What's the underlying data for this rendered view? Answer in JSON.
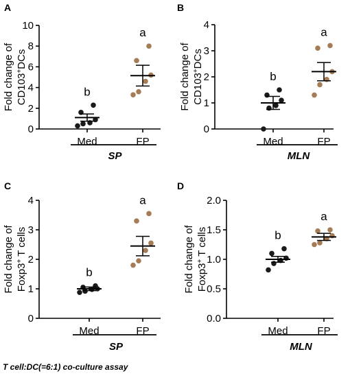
{
  "footnote": "T cell:DC(=6:1) co-culture assay",
  "colors": {
    "med": "#1a1a1a",
    "fp": "#a57c55",
    "axis": "#000000"
  },
  "chart_data": [
    {
      "panel": "A",
      "type": "scatter",
      "ylabel_line1": "Fold change of",
      "ylabel_line2": "CD103",
      "ylabel_sup": "+",
      "ylabel_tail": "DCs",
      "ylim": [
        0,
        10
      ],
      "yticks": [
        0,
        2,
        4,
        6,
        8,
        10
      ],
      "categories": [
        "Med",
        "FP"
      ],
      "group_label": "SP",
      "groups": [
        {
          "name": "Med",
          "letter": "b",
          "mean": 1.1,
          "sem": 0.35,
          "points": [
            0.3,
            0.5,
            0.6,
            0.9,
            1.6,
            2.3
          ]
        },
        {
          "name": "FP",
          "letter": "a",
          "mean": 5.15,
          "sem": 1.0,
          "points": [
            3.3,
            3.6,
            4.6,
            5.2,
            6.6,
            8.0
          ]
        }
      ]
    },
    {
      "panel": "B",
      "type": "scatter",
      "ylabel_line1": "Fold change of",
      "ylabel_line2": "CD103",
      "ylabel_sup": "+",
      "ylabel_tail": "DCs",
      "ylim": [
        0,
        4
      ],
      "yticks": [
        0,
        1,
        2,
        3,
        4
      ],
      "categories": [
        "Med",
        "FP"
      ],
      "group_label": "MLN",
      "groups": [
        {
          "name": "Med",
          "letter": "b",
          "mean": 1.0,
          "sem": 0.25,
          "points": [
            0.0,
            0.8,
            0.9,
            1.1,
            1.3,
            1.5
          ]
        },
        {
          "name": "FP",
          "letter": "a",
          "mean": 2.2,
          "sem": 0.35,
          "points": [
            1.3,
            1.7,
            1.9,
            2.2,
            3.1,
            3.2
          ]
        }
      ]
    },
    {
      "panel": "C",
      "type": "scatter",
      "ylabel_line1": "Fold change of",
      "ylabel_line2": "Foxp3",
      "ylabel_sup": "+",
      "ylabel_tail": " T cells",
      "ylim": [
        0,
        4
      ],
      "yticks": [
        0,
        1,
        2,
        3,
        4
      ],
      "categories": [
        "Med",
        "FP"
      ],
      "group_label": "SP",
      "groups": [
        {
          "name": "Med",
          "letter": "b",
          "mean": 1.0,
          "sem": 0.06,
          "points": [
            0.88,
            0.92,
            0.98,
            1.0,
            1.05,
            1.1
          ]
        },
        {
          "name": "FP",
          "letter": "a",
          "mean": 2.45,
          "sem": 0.33,
          "points": [
            1.8,
            1.95,
            2.3,
            2.55,
            3.3,
            3.55
          ]
        }
      ]
    },
    {
      "panel": "D",
      "type": "scatter",
      "ylabel_line1": "Fold change of",
      "ylabel_line2": "Foxp3",
      "ylabel_sup": "+",
      "ylabel_tail": " T cells",
      "ylim": [
        0,
        2
      ],
      "yticks": [
        "0.0",
        "0.5",
        "1.0",
        "1.5",
        "2.0"
      ],
      "categories": [
        "Med",
        "FP"
      ],
      "group_label": "MLN",
      "groups": [
        {
          "name": "Med",
          "letter": "b",
          "mean": 1.0,
          "sem": 0.05,
          "points": [
            0.82,
            0.93,
            0.98,
            1.02,
            1.1,
            1.18
          ]
        },
        {
          "name": "FP",
          "letter": "a",
          "mean": 1.38,
          "sem": 0.06,
          "points": [
            1.25,
            1.28,
            1.35,
            1.4,
            1.48,
            1.5
          ]
        }
      ]
    }
  ]
}
